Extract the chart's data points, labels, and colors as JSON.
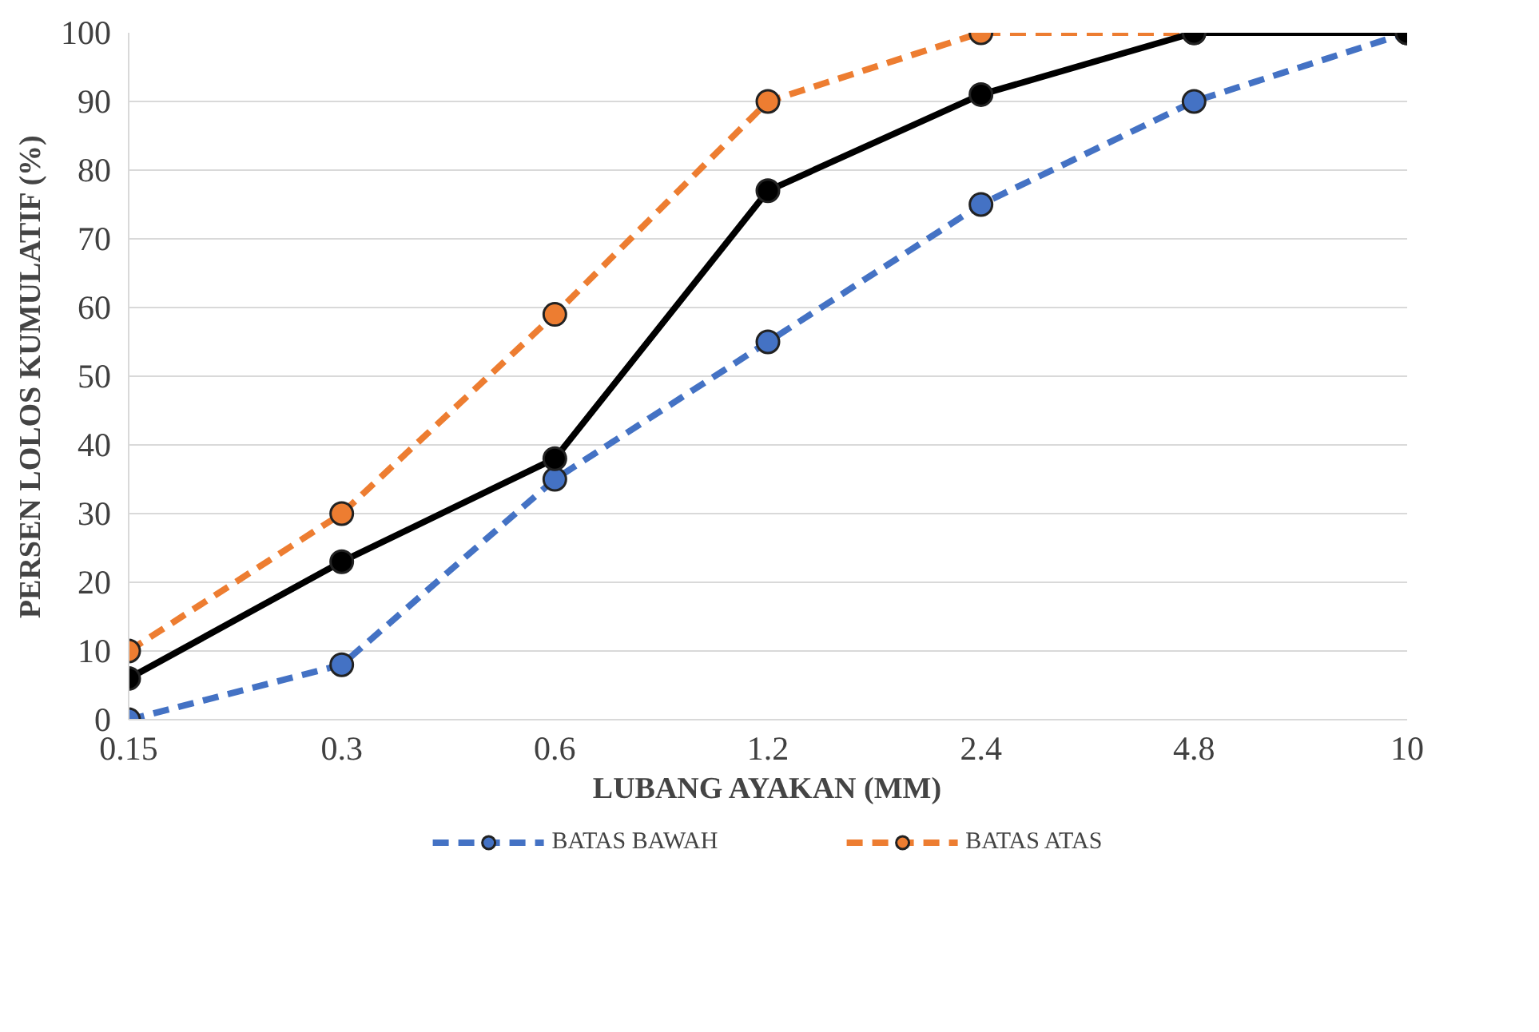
{
  "chart_data": {
    "type": "line",
    "xlabel": "LUBANG AYAKAN (MM)",
    "ylabel": "PERSEN LOLOS KUMULATIF (%)",
    "categories": [
      "0.15",
      "0.3",
      "0.6",
      "1.2",
      "2.4",
      "4.8",
      "10"
    ],
    "series": [
      {
        "name": "BATAS BAWAH",
        "color": "#4472c4",
        "line_style": "dashed",
        "values": [
          0,
          8,
          35,
          55,
          75,
          90,
          100
        ]
      },
      {
        "name": "BATAS ATAS",
        "color": "#ed7d31",
        "line_style": "dashed",
        "values": [
          10,
          30,
          59,
          90,
          100,
          100,
          100
        ]
      },
      {
        "color": "#000000",
        "line_style": "solid",
        "values": [
          6,
          23,
          38,
          77,
          91,
          100,
          100
        ]
      }
    ],
    "ylim": [
      0,
      100
    ],
    "yticks": [
      0,
      10,
      20,
      30,
      40,
      50,
      60,
      70,
      80,
      90,
      100
    ],
    "grid": "y",
    "legend": "bottom",
    "marker": "circle"
  }
}
